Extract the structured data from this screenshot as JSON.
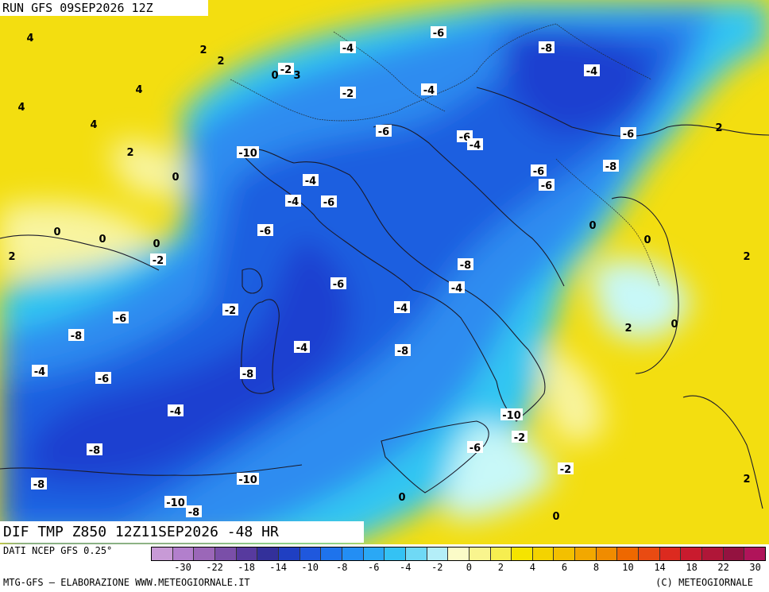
{
  "header": {
    "run_title": "RUN GFS 09SEP2026 12Z"
  },
  "map": {
    "title": "DIF TMP Z850 12Z11SEP2026 -48 HR",
    "contour_labels": [
      "4",
      "2",
      "2",
      "4",
      "-2",
      "0",
      "3",
      "4",
      "4",
      "2",
      "0",
      "0",
      "0",
      "0",
      "2",
      "-2",
      "-4",
      "-2",
      "-6",
      "-4",
      "-6",
      "-10",
      "-8",
      "-4",
      "-6",
      "-4",
      "-4",
      "-4",
      "-6",
      "-6",
      "-6",
      "-8",
      "-6",
      "-6",
      "-8",
      "-4",
      "-6",
      "-2",
      "-6",
      "-4",
      "-8",
      "-4",
      "-8",
      "-4",
      "-6",
      "-8",
      "-4",
      "-8",
      "-8",
      "-10",
      "-10",
      "-8",
      "-10",
      "-6",
      "-2",
      "-2",
      "0",
      "0",
      "0",
      "0",
      "0",
      "2",
      "2",
      "2",
      "2",
      "0",
      "0"
    ],
    "colors": {
      "neg_deep": "#1c3fd0",
      "neg_mid": "#2f8cf0",
      "neg_light": "#35c8f0",
      "zero": "#c8f8f8",
      "pos_pale": "#f8f4a0",
      "pos": "#f5e600",
      "pos_warm": "#f0c800"
    }
  },
  "legend": {
    "data_source": "DATI NCEP GFS 0.25°",
    "tick_labels": [
      "-30",
      "-22",
      "-18",
      "-14",
      "-10",
      "-8",
      "-6",
      "-4",
      "-2",
      "0",
      "2",
      "4",
      "6",
      "8",
      "10",
      "14",
      "18",
      "22",
      "30"
    ],
    "colors": [
      "#c89ad6",
      "#b27fcc",
      "#9b67b8",
      "#7a4fa8",
      "#573a9e",
      "#33309a",
      "#1f3fc2",
      "#1f58dd",
      "#1e73ec",
      "#238ef4",
      "#2aa8f5",
      "#34c2f4",
      "#6fd9f5",
      "#b4eef8",
      "#fbfbc8",
      "#f9f58e",
      "#f6ee50",
      "#f5e400",
      "#f4d300",
      "#f3c000",
      "#f2a800",
      "#f08c00",
      "#ee6800",
      "#e94b12",
      "#dc2a1f",
      "#c91b2e",
      "#b01638",
      "#941240",
      "#b0145a"
    ]
  },
  "footer": {
    "left": "MTG-GFS — ELABORAZIONE WWW.METEOGIORNALE.IT",
    "right": "(C) METEOGIORNALE"
  }
}
